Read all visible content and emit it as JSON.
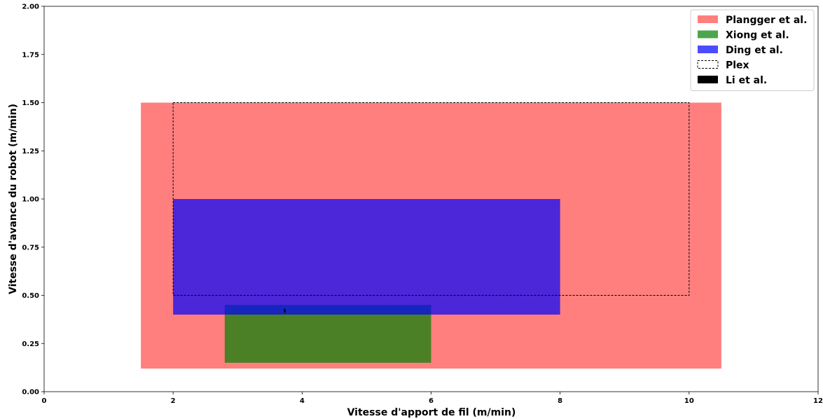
{
  "chart_data": {
    "type": "area",
    "xlabel": "Vitesse d'apport de fil (m/min)",
    "ylabel": "Vitesse d'avance du robot (m/min)",
    "xlim": [
      0,
      12
    ],
    "ylim": [
      0,
      2.0
    ],
    "xticks": [
      "0",
      "2",
      "4",
      "6",
      "8",
      "10",
      "12"
    ],
    "yticks": [
      "0.00",
      "0.25",
      "0.50",
      "0.75",
      "1.00",
      "1.25",
      "1.50",
      "1.75",
      "2.00"
    ],
    "grid": false,
    "legend_position": "top-right",
    "series": [
      {
        "name": "Plangger et al.",
        "style": "filled",
        "color": "#ff0000",
        "opacity": 0.5,
        "x_range": [
          1.5,
          10.5
        ],
        "y_range": [
          0.12,
          1.5
        ]
      },
      {
        "name": "Xiong et al.",
        "style": "filled",
        "color": "#008000",
        "opacity": 0.7,
        "x_range": [
          2.8,
          6.0
        ],
        "y_range": [
          0.15,
          0.45
        ]
      },
      {
        "name": "Ding et al.",
        "style": "filled",
        "color": "#0000ff",
        "opacity": 0.7,
        "x_range": [
          2.0,
          8.0
        ],
        "y_range": [
          0.4,
          1.0
        ]
      },
      {
        "name": "Plex",
        "style": "dashed",
        "color": "#000000",
        "x_range": [
          2.0,
          10.0
        ],
        "y_range": [
          0.5,
          1.5
        ]
      },
      {
        "name": "Li et al.",
        "style": "filled",
        "color": "#000000",
        "opacity": 1.0,
        "x_range": [
          3.72,
          3.74
        ],
        "y_range": [
          0.41,
          0.43
        ]
      }
    ]
  }
}
